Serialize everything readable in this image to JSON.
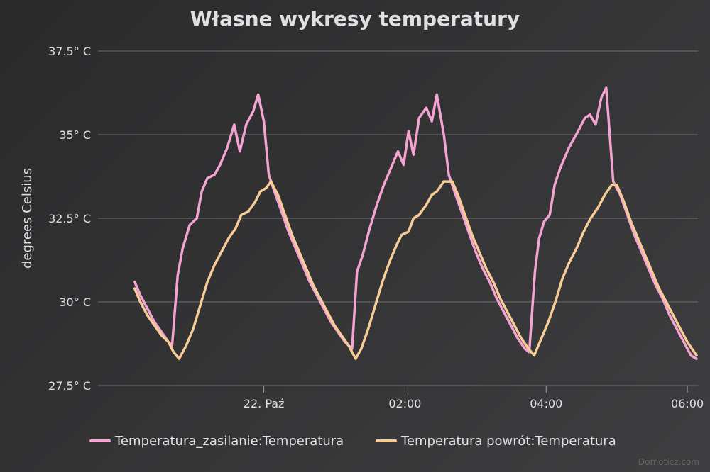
{
  "chart_data": {
    "type": "line",
    "title": "Własne wykresy temperatury",
    "ylabel": "degrees Celsius",
    "xlabel": "",
    "ylim": [
      27.5,
      37.5
    ],
    "xlim": [
      -2.35,
      6.15
    ],
    "y_ticks": [
      {
        "value": 27.5,
        "label": "27.5° C"
      },
      {
        "value": 30,
        "label": "30° C"
      },
      {
        "value": 32.5,
        "label": "32.5° C"
      },
      {
        "value": 35,
        "label": "35° C"
      },
      {
        "value": 37.5,
        "label": "37.5° C"
      }
    ],
    "x_ticks": [
      {
        "value": 0,
        "label": "22. Paź"
      },
      {
        "value": 2,
        "label": "02:00"
      },
      {
        "value": 4,
        "label": "04:00"
      },
      {
        "value": 6,
        "label": "06:00"
      }
    ],
    "grid": true,
    "legend_position": "bottom",
    "credit": "Domoticz.com",
    "series": [
      {
        "name": "Temperatura_zasilanie:Temperatura",
        "color": "#f4a3d2",
        "points": [
          [
            -1.83,
            30.6
          ],
          [
            -1.75,
            30.2
          ],
          [
            -1.65,
            29.8
          ],
          [
            -1.55,
            29.4
          ],
          [
            -1.45,
            29.1
          ],
          [
            -1.35,
            28.8
          ],
          [
            -1.3,
            28.7
          ],
          [
            -1.22,
            30.8
          ],
          [
            -1.15,
            31.6
          ],
          [
            -1.05,
            32.3
          ],
          [
            -0.95,
            32.5
          ],
          [
            -0.88,
            33.3
          ],
          [
            -0.8,
            33.7
          ],
          [
            -0.7,
            33.8
          ],
          [
            -0.62,
            34.1
          ],
          [
            -0.52,
            34.6
          ],
          [
            -0.42,
            35.3
          ],
          [
            -0.34,
            34.5
          ],
          [
            -0.25,
            35.3
          ],
          [
            -0.15,
            35.7
          ],
          [
            -0.08,
            36.2
          ],
          [
            0.0,
            35.4
          ],
          [
            0.07,
            33.8
          ],
          [
            0.15,
            33.3
          ],
          [
            0.25,
            32.7
          ],
          [
            0.35,
            32.1
          ],
          [
            0.45,
            31.6
          ],
          [
            0.55,
            31.1
          ],
          [
            0.65,
            30.6
          ],
          [
            0.75,
            30.2
          ],
          [
            0.85,
            29.8
          ],
          [
            0.95,
            29.4
          ],
          [
            1.05,
            29.1
          ],
          [
            1.15,
            28.8
          ],
          [
            1.25,
            28.6
          ],
          [
            1.32,
            30.9
          ],
          [
            1.4,
            31.4
          ],
          [
            1.5,
            32.2
          ],
          [
            1.6,
            32.9
          ],
          [
            1.7,
            33.5
          ],
          [
            1.8,
            34.0
          ],
          [
            1.9,
            34.5
          ],
          [
            1.98,
            34.1
          ],
          [
            2.05,
            35.1
          ],
          [
            2.12,
            34.4
          ],
          [
            2.2,
            35.5
          ],
          [
            2.3,
            35.8
          ],
          [
            2.38,
            35.4
          ],
          [
            2.45,
            36.2
          ],
          [
            2.55,
            35.0
          ],
          [
            2.62,
            33.8
          ],
          [
            2.7,
            33.3
          ],
          [
            2.8,
            32.7
          ],
          [
            2.9,
            32.1
          ],
          [
            3.0,
            31.5
          ],
          [
            3.1,
            31.0
          ],
          [
            3.2,
            30.6
          ],
          [
            3.3,
            30.1
          ],
          [
            3.4,
            29.7
          ],
          [
            3.5,
            29.3
          ],
          [
            3.6,
            28.9
          ],
          [
            3.7,
            28.6
          ],
          [
            3.76,
            28.5
          ],
          [
            3.84,
            30.9
          ],
          [
            3.9,
            31.9
          ],
          [
            3.97,
            32.4
          ],
          [
            4.05,
            32.6
          ],
          [
            4.12,
            33.5
          ],
          [
            4.2,
            34.0
          ],
          [
            4.32,
            34.6
          ],
          [
            4.45,
            35.1
          ],
          [
            4.55,
            35.5
          ],
          [
            4.62,
            35.6
          ],
          [
            4.7,
            35.3
          ],
          [
            4.78,
            36.1
          ],
          [
            4.85,
            36.4
          ],
          [
            4.95,
            33.6
          ],
          [
            5.05,
            33.2
          ],
          [
            5.15,
            32.6
          ],
          [
            5.25,
            32.0
          ],
          [
            5.35,
            31.5
          ],
          [
            5.45,
            31.0
          ],
          [
            5.55,
            30.5
          ],
          [
            5.65,
            30.1
          ],
          [
            5.75,
            29.6
          ],
          [
            5.85,
            29.2
          ],
          [
            5.95,
            28.8
          ],
          [
            6.05,
            28.4
          ],
          [
            6.13,
            28.3
          ]
        ]
      },
      {
        "name": "Temperatura powrót:Temperatura",
        "color": "#f8cc98",
        "points": [
          [
            -1.83,
            30.4
          ],
          [
            -1.75,
            30.0
          ],
          [
            -1.65,
            29.6
          ],
          [
            -1.55,
            29.3
          ],
          [
            -1.45,
            29.0
          ],
          [
            -1.35,
            28.8
          ],
          [
            -1.28,
            28.5
          ],
          [
            -1.2,
            28.3
          ],
          [
            -1.1,
            28.7
          ],
          [
            -1.0,
            29.2
          ],
          [
            -0.9,
            29.9
          ],
          [
            -0.8,
            30.6
          ],
          [
            -0.7,
            31.1
          ],
          [
            -0.6,
            31.5
          ],
          [
            -0.5,
            31.9
          ],
          [
            -0.4,
            32.2
          ],
          [
            -0.32,
            32.6
          ],
          [
            -0.22,
            32.7
          ],
          [
            -0.12,
            33.0
          ],
          [
            -0.05,
            33.3
          ],
          [
            0.03,
            33.4
          ],
          [
            0.1,
            33.6
          ],
          [
            0.2,
            33.2
          ],
          [
            0.3,
            32.6
          ],
          [
            0.4,
            32.0
          ],
          [
            0.5,
            31.5
          ],
          [
            0.6,
            31.0
          ],
          [
            0.7,
            30.5
          ],
          [
            0.8,
            30.1
          ],
          [
            0.9,
            29.7
          ],
          [
            1.0,
            29.3
          ],
          [
            1.1,
            29.0
          ],
          [
            1.2,
            28.7
          ],
          [
            1.3,
            28.3
          ],
          [
            1.38,
            28.6
          ],
          [
            1.48,
            29.2
          ],
          [
            1.58,
            29.9
          ],
          [
            1.68,
            30.6
          ],
          [
            1.78,
            31.2
          ],
          [
            1.88,
            31.7
          ],
          [
            1.95,
            32.0
          ],
          [
            2.05,
            32.1
          ],
          [
            2.12,
            32.5
          ],
          [
            2.2,
            32.6
          ],
          [
            2.3,
            32.9
          ],
          [
            2.38,
            33.2
          ],
          [
            2.45,
            33.3
          ],
          [
            2.55,
            33.6
          ],
          [
            2.67,
            33.6
          ],
          [
            2.75,
            33.2
          ],
          [
            2.85,
            32.6
          ],
          [
            2.95,
            32.0
          ],
          [
            3.05,
            31.5
          ],
          [
            3.15,
            31.0
          ],
          [
            3.25,
            30.6
          ],
          [
            3.35,
            30.1
          ],
          [
            3.45,
            29.7
          ],
          [
            3.55,
            29.3
          ],
          [
            3.65,
            28.9
          ],
          [
            3.75,
            28.6
          ],
          [
            3.83,
            28.4
          ],
          [
            3.93,
            28.9
          ],
          [
            4.03,
            29.4
          ],
          [
            4.13,
            30.0
          ],
          [
            4.23,
            30.7
          ],
          [
            4.33,
            31.2
          ],
          [
            4.43,
            31.6
          ],
          [
            4.53,
            32.1
          ],
          [
            4.63,
            32.5
          ],
          [
            4.73,
            32.8
          ],
          [
            4.83,
            33.2
          ],
          [
            4.93,
            33.5
          ],
          [
            5.0,
            33.5
          ],
          [
            5.1,
            33.0
          ],
          [
            5.2,
            32.4
          ],
          [
            5.3,
            31.9
          ],
          [
            5.4,
            31.4
          ],
          [
            5.5,
            30.9
          ],
          [
            5.6,
            30.4
          ],
          [
            5.7,
            30.0
          ],
          [
            5.8,
            29.6
          ],
          [
            5.9,
            29.2
          ],
          [
            6.0,
            28.8
          ],
          [
            6.13,
            28.4
          ]
        ]
      }
    ]
  }
}
